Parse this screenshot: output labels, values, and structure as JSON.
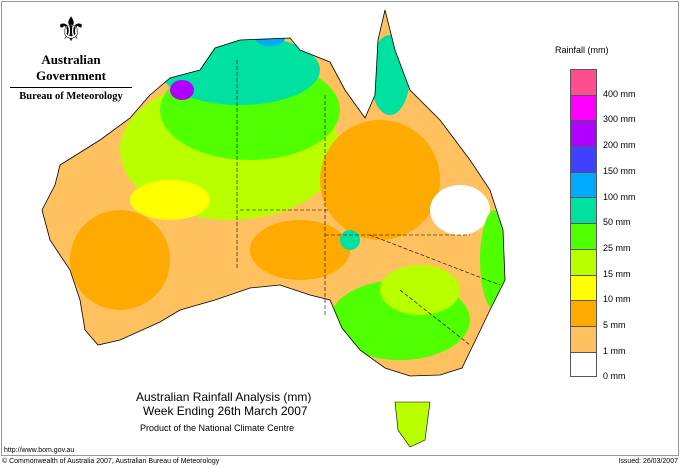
{
  "logo": {
    "government": "Australian Government",
    "bureau": "Bureau of Meteorology"
  },
  "legend": {
    "title": "Rainfall (mm)",
    "colors": [
      "#ff4d8f",
      "#ff00ff",
      "#b000ff",
      "#4040ff",
      "#00aaff",
      "#00e0a0",
      "#50ff00",
      "#b8ff00",
      "#ffff00",
      "#ffaa00",
      "#ffc060",
      "#ffffff"
    ],
    "labels": [
      "400 mm",
      "300 mm",
      "200 mm",
      "150 mm",
      "100 mm",
      "50 mm",
      "25 mm",
      "15 mm",
      "10 mm",
      "5 mm",
      "1 mm",
      "0 mm"
    ]
  },
  "title": {
    "line1": "Australian Rainfall Analysis (mm)",
    "line2": "Week Ending 26th March 2007",
    "line3": "Product of the National Climate Centre"
  },
  "footer": {
    "url": "http://www.bom.gov.au",
    "copyright": "© Commonwealth of Australia 2007, Australian Bureau of Meteorology",
    "issued": "Issued: 26/03/2007"
  }
}
